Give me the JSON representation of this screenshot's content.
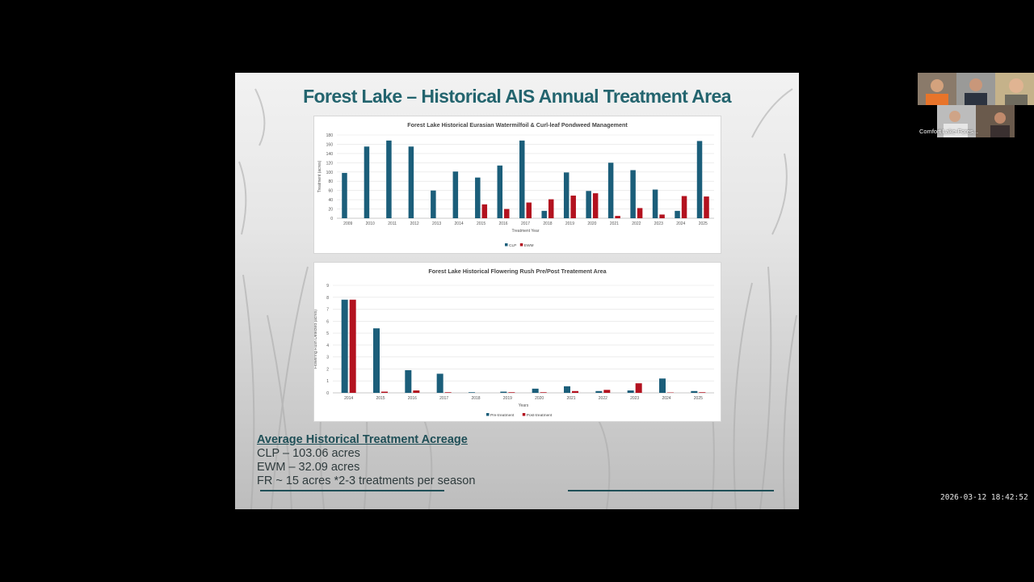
{
  "slide": {
    "title": "Forest Lake – Historical AIS Annual Treatment Area",
    "summary": {
      "heading": "Average Historical Treatment Acreage",
      "lines": [
        "CLP – 103.06 acres",
        "EWM – 32.09 acres",
        "FR ~ 15 acres *2-3 treatments per season"
      ]
    }
  },
  "colors": {
    "teal": "#1b5e7a",
    "red": "#b3121f",
    "title": "#23646e"
  },
  "chart_data": [
    {
      "type": "bar",
      "title": "Forest Lake Historical Eurasian Watermilfoil & Curl-leaf Pondweed Management",
      "xlabel": "Treatment Year",
      "ylabel": "Treatment (acres)",
      "ylim": [
        0,
        180
      ],
      "yticks": [
        0,
        20,
        40,
        60,
        80,
        100,
        120,
        140,
        160,
        180
      ],
      "categories": [
        "2009",
        "2010",
        "2011",
        "2012",
        "2013",
        "2014",
        "2015",
        "2016",
        "2017",
        "2018",
        "2019",
        "2020",
        "2021",
        "2022",
        "2023",
        "2024",
        "2025"
      ],
      "series": [
        {
          "name": "CLP",
          "color": "#1b5e7a",
          "values": [
            98,
            155,
            168,
            155,
            60,
            101,
            88,
            114,
            168,
            16,
            99,
            59,
            120,
            104,
            62,
            16,
            167
          ]
        },
        {
          "name": "EWM",
          "color": "#b3121f",
          "values": [
            0,
            0,
            0,
            0,
            0,
            0,
            30,
            20,
            34,
            41,
            49,
            54,
            5,
            22,
            8,
            48,
            47
          ]
        }
      ],
      "grid": true,
      "legend": "bottom"
    },
    {
      "type": "bar",
      "title": "Forest Lake Historical Flowering  Rush Pre/Post Treatement Area",
      "xlabel": "Years",
      "ylabel": "Flowering Rush Detected (acres)",
      "ylim": [
        0,
        9
      ],
      "yticks": [
        0,
        1,
        2,
        3,
        4,
        5,
        6,
        7,
        8,
        9
      ],
      "categories": [
        "2014",
        "2015",
        "2016",
        "2017",
        "2018",
        "2019",
        "2020",
        "2021",
        "2022",
        "2023",
        "2024",
        "2025"
      ],
      "series": [
        {
          "name": "Pre-treatment",
          "color": "#1b5e7a",
          "values": [
            7.8,
            5.4,
            1.9,
            1.6,
            0.05,
            0.1,
            0.35,
            0.55,
            0.15,
            0.2,
            1.2,
            0.15
          ]
        },
        {
          "name": "Post-treatment",
          "color": "#b3121f",
          "values": [
            7.8,
            0.1,
            0.2,
            0.05,
            0,
            0.05,
            0.05,
            0.15,
            0.25,
            0.8,
            0.03,
            0.05
          ]
        }
      ],
      "grid": true,
      "legend": "bottom"
    }
  ],
  "meeting": {
    "participant_label": "Comfort Lake-Fores...",
    "timestamp": "2026-03-12  18:42:52"
  }
}
